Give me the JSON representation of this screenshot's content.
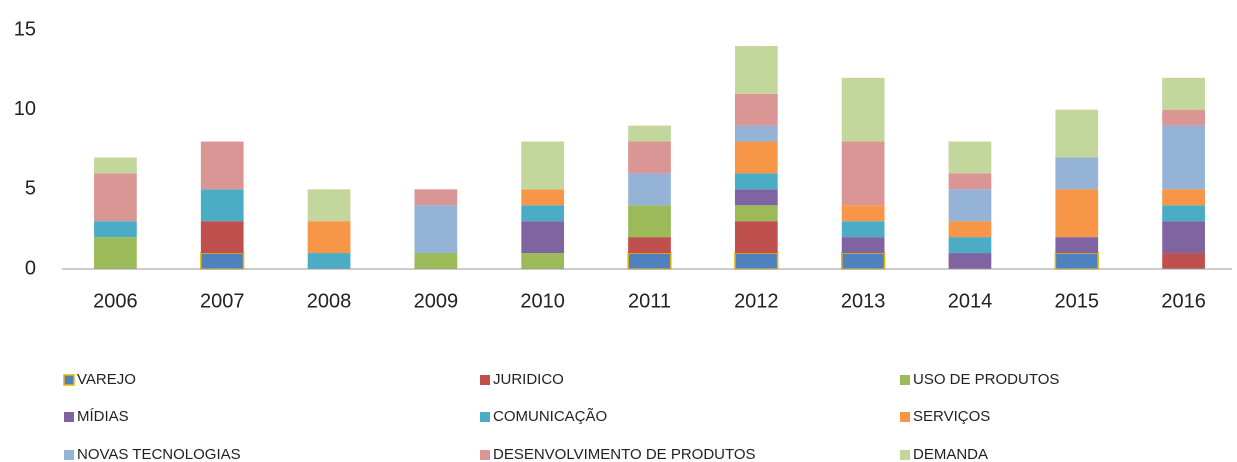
{
  "chart_data": {
    "type": "stacked_bar",
    "categories": [
      "2006",
      "2007",
      "2008",
      "2009",
      "2010",
      "2011",
      "2012",
      "2013",
      "2014",
      "2015",
      "2016"
    ],
    "series": [
      {
        "name": "VAREJO",
        "color": "#4f81bd",
        "values": [
          0,
          1,
          0,
          0,
          0,
          1,
          1,
          1,
          0,
          1,
          0
        ]
      },
      {
        "name": "JURIDICO",
        "color": "#c0504d",
        "values": [
          0,
          2,
          0,
          0,
          0,
          1,
          2,
          0,
          0,
          0,
          1
        ]
      },
      {
        "name": "USO DE PRODUTOS",
        "color": "#9bbb59",
        "values": [
          2,
          0,
          0,
          1,
          1,
          2,
          1,
          0,
          0,
          0,
          0
        ]
      },
      {
        "name": "MÍDIAS",
        "color": "#8064a2",
        "values": [
          0,
          0,
          0,
          0,
          2,
          0,
          1,
          1,
          1,
          1,
          2
        ]
      },
      {
        "name": "COMUNICAÇÃO",
        "color": "#4bacc6",
        "values": [
          1,
          2,
          1,
          0,
          1,
          0,
          1,
          1,
          1,
          0,
          1
        ]
      },
      {
        "name": "SERVIÇOS",
        "color": "#f79646",
        "values": [
          0,
          0,
          2,
          0,
          1,
          0,
          2,
          1,
          1,
          3,
          1
        ]
      },
      {
        "name": "NOVAS TECNOLOGIAS",
        "color": "#95b3d7",
        "values": [
          0,
          0,
          0,
          3,
          0,
          2,
          1,
          0,
          2,
          2,
          4
        ]
      },
      {
        "name": "DESENVOLVIMENTO DE PRODUTOS",
        "color": "#d99694",
        "values": [
          3,
          3,
          0,
          1,
          0,
          2,
          2,
          4,
          1,
          0,
          1
        ]
      },
      {
        "name": "DEMANDA",
        "color": "#c3d69b",
        "values": [
          1,
          0,
          2,
          0,
          3,
          1,
          3,
          4,
          2,
          3,
          2
        ]
      }
    ],
    "ylim": [
      0,
      15
    ],
    "yticks": [
      0,
      5,
      10,
      15
    ],
    "grid": false
  }
}
